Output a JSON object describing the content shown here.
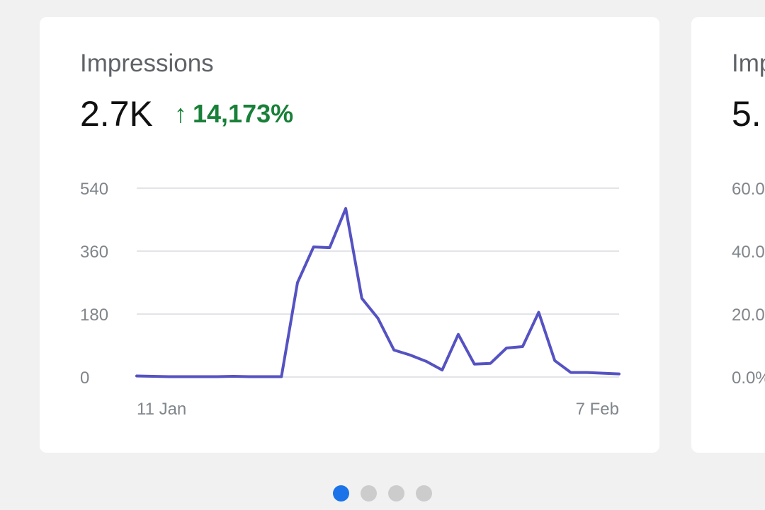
{
  "card": {
    "title": "Impressions",
    "value": "2.7K",
    "change": "14,173%",
    "change_icon": "arrow-up-icon",
    "change_color": "#188038"
  },
  "peek_card": {
    "title": "Imp",
    "value": "5.",
    "ticks": [
      "60.0",
      "40.0",
      "20.0",
      "0.0%"
    ]
  },
  "chart_data": {
    "type": "line",
    "ylim": [
      0,
      540
    ],
    "y_ticks": [
      "540",
      "360",
      "180",
      "0"
    ],
    "x_tick_labels": [
      "11 Jan",
      "7 Feb"
    ],
    "line_color": "#5552c2",
    "grid": true,
    "series": [
      {
        "x": [
          "8 Jan",
          "9 Jan",
          "10 Jan",
          "11 Jan",
          "12 Jan",
          "13 Jan",
          "14 Jan",
          "15 Jan",
          "16 Jan",
          "17 Jan",
          "18 Jan",
          "19 Jan",
          "20 Jan",
          "21 Jan",
          "22 Jan",
          "23 Jan",
          "24 Jan",
          "25 Jan",
          "26 Jan",
          "27 Jan",
          "28 Jan",
          "29 Jan",
          "30 Jan",
          "31 Jan",
          "1 Feb",
          "2 Feb",
          "3 Feb",
          "4 Feb",
          "5 Feb",
          "6 Feb",
          "7 Feb"
        ],
        "values": [
          3,
          2,
          1,
          1,
          1,
          1,
          2,
          1,
          1,
          1,
          270,
          372,
          370,
          482,
          225,
          168,
          77,
          63,
          45,
          20,
          122,
          37,
          39,
          83,
          87,
          185,
          47,
          13,
          13,
          11,
          9
        ]
      }
    ]
  },
  "pagination": {
    "count": 4,
    "active": 0,
    "active_color": "#1a73e8"
  }
}
